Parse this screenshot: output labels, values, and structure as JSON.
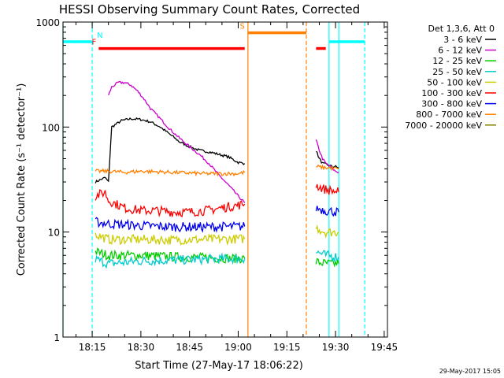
{
  "chart_data": {
    "type": "line",
    "title": "HESSI Observing Summary Count Rates, Corrected",
    "xlabel": "Start Time (27-May-17 18:06:22)",
    "ylabel": "Corrected Count Rate (s⁻¹ detector⁻¹)",
    "y_scale": "log",
    "ylim": [
      1,
      1000
    ],
    "xlim": [
      "18:06",
      "19:46"
    ],
    "x_ticks": [
      "18:15",
      "18:30",
      "18:45",
      "19:00",
      "19:15",
      "19:30",
      "19:45"
    ],
    "y_ticks": [
      "1",
      "10",
      "100",
      "1000"
    ],
    "date_stamp": "29-May-2017 15:05",
    "legend_header": "Det 1,3,6, Att 0",
    "series": [
      {
        "name": "3 - 6 keV",
        "color": "#000000",
        "x": [
          "18:16",
          "18:19",
          "18:20",
          "18:21",
          "18:24",
          "18:27",
          "18:30",
          "18:33",
          "18:36",
          "18:39",
          "18:42",
          "18:45",
          "18:48",
          "18:51",
          "18:54",
          "18:57",
          "19:00",
          "19:02",
          "19:24",
          "19:25",
          "19:26",
          "19:27",
          "19:28",
          "19:29",
          "19:30",
          "19:31"
        ],
        "y": [
          30,
          33,
          30,
          100,
          115,
          120,
          118,
          112,
          100,
          85,
          72,
          65,
          60,
          58,
          55,
          52,
          46,
          45,
          60,
          50,
          45,
          44,
          43,
          42,
          42,
          41
        ]
      },
      {
        "name": "6 - 12 keV",
        "color": "#cc00cc",
        "x": [
          "18:20",
          "18:21",
          "18:23",
          "18:25",
          "18:27",
          "18:29",
          "18:31",
          "18:33",
          "18:36",
          "18:39",
          "18:42",
          "18:45",
          "18:48",
          "18:51",
          "18:54",
          "18:57",
          "19:00",
          "19:02",
          "19:24",
          "19:25",
          "19:26",
          "19:27",
          "19:28",
          "19:29",
          "19:30",
          "19:31"
        ],
        "y": [
          200,
          240,
          265,
          265,
          250,
          220,
          185,
          150,
          120,
          95,
          78,
          65,
          55,
          45,
          35,
          28,
          22,
          19,
          75,
          60,
          50,
          45,
          43,
          40,
          38,
          37
        ]
      },
      {
        "name": "12 - 25 keV",
        "color": "#00cc00",
        "x": [
          "18:16",
          "18:20",
          "18:30",
          "18:40",
          "18:50",
          "19:00",
          "19:02",
          "19:24",
          "19:27",
          "19:31"
        ],
        "y": [
          6.5,
          6.0,
          6.0,
          5.8,
          5.7,
          5.6,
          5.6,
          5.2,
          5.0,
          5.0
        ]
      },
      {
        "name": "25 - 50 keV",
        "color": "#00cccc",
        "x": [
          "18:16",
          "18:20",
          "18:30",
          "18:40",
          "18:50",
          "19:00",
          "19:02",
          "19:24",
          "19:27",
          "19:31"
        ],
        "y": [
          5.5,
          5.0,
          5.3,
          5.4,
          5.5,
          5.6,
          5.6,
          6.5,
          6.0,
          5.8
        ]
      },
      {
        "name": "50 - 100 keV",
        "color": "#cccc00",
        "x": [
          "18:16",
          "18:20",
          "18:30",
          "18:40",
          "18:50",
          "19:00",
          "19:02",
          "19:24",
          "19:27",
          "19:31"
        ],
        "y": [
          9.5,
          8.5,
          8.5,
          8.4,
          8.5,
          8.6,
          8.6,
          11,
          10,
          10
        ]
      },
      {
        "name": "100 - 300 keV",
        "color": "#ff0000",
        "x": [
          "18:16",
          "18:19",
          "18:20",
          "18:25",
          "18:30",
          "18:35",
          "18:40",
          "18:45",
          "18:50",
          "18:55",
          "19:00",
          "19:02",
          "19:24",
          "19:26",
          "19:28",
          "19:31"
        ],
        "y": [
          22,
          24,
          20,
          17,
          16,
          16,
          15.5,
          15.5,
          16,
          17,
          18,
          18.5,
          28,
          26,
          25,
          24
        ]
      },
      {
        "name": "300 - 800 keV",
        "color": "#0000ee",
        "x": [
          "18:16",
          "18:20",
          "18:30",
          "18:40",
          "18:50",
          "19:00",
          "19:02",
          "19:24",
          "19:27",
          "19:31"
        ],
        "y": [
          12.5,
          12,
          11.5,
          11.2,
          11.2,
          11.3,
          11.3,
          17,
          16,
          15.5
        ]
      },
      {
        "name": "800 - 7000 keV",
        "color": "#ff8000",
        "x": [
          "18:16",
          "18:20",
          "18:25",
          "18:30",
          "18:40",
          "18:50",
          "19:00",
          "19:02",
          "19:24",
          "19:27",
          "19:31"
        ],
        "y": [
          38,
          38,
          37,
          38,
          37,
          36,
          36,
          37,
          42,
          41,
          40
        ]
      },
      {
        "name": "7000 - 20000 keV",
        "color": "#808000",
        "x": [],
        "y": []
      }
    ],
    "annotations": [
      {
        "label": "N",
        "kind": "night",
        "color": "#00ffff",
        "bar_from": "18:06",
        "bar_to": "18:15",
        "marker": "18:15"
      },
      {
        "label": "F",
        "kind": "flare",
        "color": "#ff0000",
        "bar_from": "18:17",
        "bar_to": "19:02"
      },
      {
        "label": "S",
        "kind": "saa",
        "color": "#ff8000",
        "bar_from": "19:03",
        "bar_to": "19:21",
        "marker": "19:21"
      },
      {
        "label": "",
        "kind": "flare",
        "color": "#ff0000",
        "bar_from": "19:24",
        "bar_to": "19:27"
      },
      {
        "label": "",
        "kind": "night",
        "color": "#00ffff",
        "bar_from": "19:28",
        "bar_to": "19:39",
        "marker": "19:39"
      }
    ],
    "vertical_lines": [
      {
        "x": "18:06",
        "color": "#00ffff",
        "style": "solid"
      },
      {
        "x": "18:15",
        "color": "#00ffff",
        "style": "dashed"
      },
      {
        "x": "19:03",
        "color": "#ff8000",
        "style": "solid"
      },
      {
        "x": "19:21",
        "color": "#ff8000",
        "style": "dashed"
      },
      {
        "x": "19:28",
        "color": "#00ffff",
        "style": "solid"
      },
      {
        "x": "19:31",
        "color": "#00ffff",
        "style": "solid"
      },
      {
        "x": "19:39",
        "color": "#00ffff",
        "style": "dashed"
      }
    ]
  }
}
